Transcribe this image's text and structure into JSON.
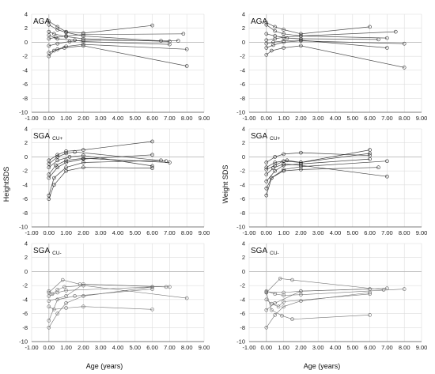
{
  "figure": {
    "xlabel": "Age (years)",
    "ylabel_left": "HeightSDS",
    "ylabel_right": "Weight SDS",
    "xticks": [
      "-1.00",
      "0.00",
      "1.00",
      "2.00",
      "3.00",
      "4.00",
      "5.00",
      "6.00",
      "7.00",
      "8.00",
      "9.00"
    ],
    "yticks": [
      "4",
      "2",
      "0",
      "-2",
      "-4",
      "-6",
      "-8",
      "-10"
    ]
  },
  "chart_data": [
    {
      "type": "line",
      "title": "AGA",
      "title_sub": "",
      "xlim": [
        -1,
        9
      ],
      "ylim": [
        -10,
        4
      ],
      "style": "dense",
      "color": "#333333",
      "series": [
        {
          "x": [
            0,
            0.5,
            1,
            2,
            6.5
          ],
          "y": [
            2.5,
            1.8,
            1.4,
            0.9,
            0.2
          ]
        },
        {
          "x": [
            0,
            0.3,
            1,
            2,
            7
          ],
          "y": [
            1.5,
            1.2,
            0.8,
            0.5,
            0.1
          ]
        },
        {
          "x": [
            0,
            0.5,
            1.2,
            2,
            7.5
          ],
          "y": [
            -0.5,
            -0.2,
            0.1,
            0.3,
            0.2
          ]
        },
        {
          "x": [
            0,
            0.5,
            1,
            2,
            8
          ],
          "y": [
            -1.5,
            -1,
            -0.6,
            -0.3,
            -1
          ]
        },
        {
          "x": [
            0,
            0.4,
            1,
            2,
            7.8
          ],
          "y": [
            0.5,
            0.7,
            0.9,
            1.1,
            1.2
          ]
        },
        {
          "x": [
            0,
            0.5,
            1,
            2,
            6
          ],
          "y": [
            3,
            2.2,
            1.5,
            1.3,
            2.4
          ]
        },
        {
          "x": [
            0,
            0.3,
            0.9,
            2,
            8
          ],
          "y": [
            -2,
            -1.2,
            -0.8,
            -0.5,
            -3.4
          ]
        },
        {
          "x": [
            0,
            0.5,
            1.5,
            2,
            7
          ],
          "y": [
            1,
            0.5,
            0.3,
            0.1,
            -0.3
          ]
        }
      ]
    },
    {
      "type": "line",
      "title": "AGA",
      "title_sub": "",
      "xlim": [
        -1,
        9
      ],
      "ylim": [
        -10,
        4
      ],
      "style": "dense",
      "color": "#333333",
      "series": [
        {
          "x": [
            0,
            0.5,
            1,
            2,
            7
          ],
          "y": [
            2.5,
            1.6,
            1.2,
            0.9,
            0.6
          ]
        },
        {
          "x": [
            0,
            0.4,
            1,
            2,
            8
          ],
          "y": [
            -0.8,
            -0.4,
            0,
            0.2,
            -0.2
          ]
        },
        {
          "x": [
            0,
            0.5,
            1.2,
            2,
            6.5
          ],
          "y": [
            1.2,
            0.9,
            0.6,
            0.5,
            0.4
          ]
        },
        {
          "x": [
            0,
            0.3,
            1,
            2,
            8
          ],
          "y": [
            -1.8,
            -1.2,
            -0.8,
            -0.5,
            -3.6
          ]
        },
        {
          "x": [
            0,
            0.5,
            1,
            2,
            7.5
          ],
          "y": [
            0.3,
            0.5,
            0.7,
            0.9,
            1.5
          ]
        },
        {
          "x": [
            0,
            0.5,
            1,
            2,
            6
          ],
          "y": [
            2.8,
            2.2,
            1.8,
            1.2,
            2.2
          ]
        },
        {
          "x": [
            0,
            0.4,
            1,
            2,
            7
          ],
          "y": [
            -0.2,
            0,
            0.2,
            0.3,
            -0.8
          ]
        }
      ]
    },
    {
      "type": "line",
      "title": "SGA",
      "title_sub": "CU+",
      "xlim": [
        -1,
        9
      ],
      "ylim": [
        -10,
        4
      ],
      "style": "dense",
      "color": "#222222",
      "series": [
        {
          "x": [
            0,
            0.5,
            1,
            2,
            6
          ],
          "y": [
            -3,
            -1.5,
            -0.8,
            -0.3,
            0.3
          ]
        },
        {
          "x": [
            0,
            0.3,
            1,
            2,
            6.5
          ],
          "y": [
            -5.5,
            -3,
            -1.5,
            -0.8,
            -0.5
          ]
        },
        {
          "x": [
            0,
            0.5,
            1.2,
            2,
            6
          ],
          "y": [
            -1.5,
            -0.5,
            0,
            0.2,
            -1.3
          ]
        },
        {
          "x": [
            0,
            0.3,
            1,
            2,
            6
          ],
          "y": [
            -6,
            -4,
            -2,
            -1.5,
            -1.6
          ]
        },
        {
          "x": [
            0,
            0.5,
            1,
            2,
            6
          ],
          "y": [
            -0.5,
            0.3,
            0.8,
            1,
            2.2
          ]
        },
        {
          "x": [
            0,
            0.4,
            1,
            2,
            7
          ],
          "y": [
            -2.5,
            -1.2,
            -0.5,
            -0.2,
            -0.8
          ]
        },
        {
          "x": [
            0,
            0.5,
            1,
            1.5,
            6.8
          ],
          "y": [
            -1,
            0,
            0.5,
            0.7,
            -0.6
          ]
        }
      ]
    },
    {
      "type": "line",
      "title": "SGA",
      "title_sub": "CU+",
      "xlim": [
        -1,
        9
      ],
      "ylim": [
        -10,
        4
      ],
      "style": "dense",
      "color": "#222222",
      "series": [
        {
          "x": [
            0,
            0.5,
            1,
            2,
            6
          ],
          "y": [
            -3.5,
            -2,
            -1.2,
            -1,
            -0.3
          ]
        },
        {
          "x": [
            0,
            0.3,
            1,
            2,
            7
          ],
          "y": [
            -5.5,
            -3,
            -1.8,
            -1.4,
            -0.6
          ]
        },
        {
          "x": [
            0,
            0.5,
            1.2,
            2,
            6
          ],
          "y": [
            -1.5,
            -0.8,
            -0.5,
            -0.8,
            1
          ]
        },
        {
          "x": [
            0,
            0.3,
            1,
            2,
            6.5
          ],
          "y": [
            -4.5,
            -3,
            -2,
            -1.8,
            -1.5
          ]
        },
        {
          "x": [
            0,
            0.5,
            1,
            2,
            6
          ],
          "y": [
            -0.8,
            0,
            0.4,
            0.6,
            0.2
          ]
        },
        {
          "x": [
            0,
            0.4,
            1,
            2,
            7
          ],
          "y": [
            -2.5,
            -1.6,
            -1,
            -1.2,
            -2.8
          ]
        },
        {
          "x": [
            0,
            0.5,
            1,
            2,
            6
          ],
          "y": [
            -1.8,
            -1.2,
            -0.6,
            -0.8,
            0.5
          ]
        }
      ]
    },
    {
      "type": "line",
      "title": "SGA",
      "title_sub": "CU-",
      "xlim": [
        -1,
        9
      ],
      "ylim": [
        -10,
        4
      ],
      "style": "sparse",
      "color": "#666666",
      "series": [
        {
          "x": [
            0,
            0.5,
            1,
            2,
            6
          ],
          "y": [
            -8,
            -6,
            -4.5,
            -3.5,
            -2.2
          ]
        },
        {
          "x": [
            0,
            0.5,
            1.5,
            6
          ],
          "y": [
            -7,
            -4,
            -3.5,
            -2.5
          ]
        },
        {
          "x": [
            0,
            0.8,
            1.8,
            6.8
          ],
          "y": [
            -3,
            -1.2,
            -1.8,
            -2.2
          ]
        },
        {
          "x": [
            0,
            0.2,
            0.5,
            0.9,
            2,
            8
          ],
          "y": [
            -2.8,
            -3.2,
            -2.6,
            -2.2,
            -2,
            -3.8
          ]
        },
        {
          "x": [
            0,
            0.5,
            1,
            6
          ],
          "y": [
            -3.5,
            -3,
            -2.7,
            -2.2
          ]
        },
        {
          "x": [
            0,
            0.3,
            1,
            2,
            6
          ],
          "y": [
            -5,
            -5.4,
            -5.2,
            -5,
            -5.4
          ]
        },
        {
          "x": [
            0,
            1,
            2,
            7
          ],
          "y": [
            -4.2,
            -3.5,
            -1.8,
            -2.2
          ]
        }
      ]
    },
    {
      "type": "line",
      "title": "SGA",
      "title_sub": "CU-",
      "xlim": [
        -1,
        9
      ],
      "ylim": [
        -10,
        4
      ],
      "style": "sparse",
      "color": "#666666",
      "series": [
        {
          "x": [
            0,
            0.5,
            1,
            2,
            6
          ],
          "y": [
            -8,
            -6.2,
            -5,
            -4.2,
            -3
          ]
        },
        {
          "x": [
            0,
            0.3,
            0.9,
            1.5,
            6
          ],
          "y": [
            -3,
            -5.5,
            -6.3,
            -6.8,
            -6.2
          ]
        },
        {
          "x": [
            0,
            0.5,
            1,
            2,
            8
          ],
          "y": [
            -2.8,
            -3.2,
            -3.4,
            -3.3,
            -2.5
          ]
        },
        {
          "x": [
            0,
            0.8,
            1.5,
            6.8
          ],
          "y": [
            -3,
            -1,
            -1.2,
            -2.6
          ]
        },
        {
          "x": [
            0,
            0.3,
            0.7,
            1,
            6
          ],
          "y": [
            -4,
            -4.6,
            -5,
            -4.3,
            -3.2
          ]
        },
        {
          "x": [
            0,
            0.5,
            2,
            6
          ],
          "y": [
            -5.5,
            -4.5,
            -2.8,
            -2.5
          ]
        },
        {
          "x": [
            0,
            1,
            2,
            7
          ],
          "y": [
            -2.9,
            -3,
            -2.8,
            -2.4
          ]
        }
      ]
    }
  ]
}
